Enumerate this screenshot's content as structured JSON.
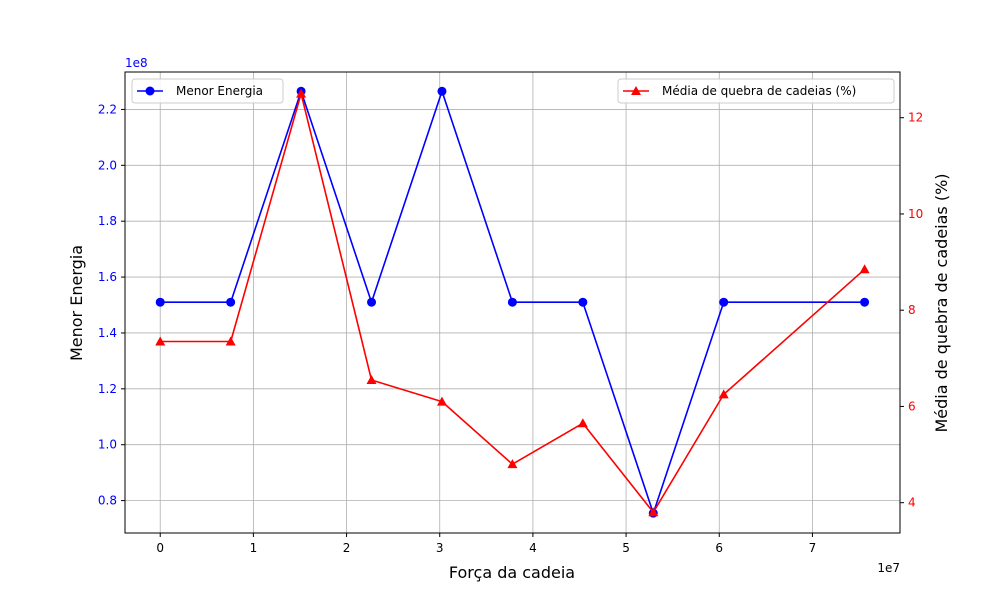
{
  "chart_data": {
    "type": "line",
    "title": "",
    "xlabel": "Força da cadeia",
    "x_offset_label": "1e7",
    "x_ticks": [
      "0",
      "1",
      "2",
      "3",
      "4",
      "5",
      "6",
      "7"
    ],
    "xlim": [
      -0.378,
      7.94
    ],
    "x": [
      0,
      0.756,
      1.512,
      2.268,
      3.024,
      3.78,
      4.536,
      5.292,
      6.048,
      7.56
    ],
    "y_left": {
      "label": "Menor Energia",
      "offset_label": "1e8",
      "color": "#0000ff",
      "ylim": [
        0.684,
        2.334
      ],
      "ticks": [
        "0.8",
        "1.0",
        "1.2",
        "1.4",
        "1.6",
        "1.8",
        "2.0",
        "2.2"
      ]
    },
    "y_right": {
      "label": "Média de quebra de cadeias (%)",
      "color": "#ff0000",
      "ylim": [
        3.37,
        12.95
      ],
      "ticks": [
        "4",
        "6",
        "8",
        "10",
        "12"
      ]
    },
    "series": [
      {
        "name": "Menor Energia",
        "axis": "left",
        "color": "#0000ff",
        "marker": "circle",
        "values": [
          1.51,
          1.51,
          2.265,
          1.51,
          2.265,
          1.51,
          1.51,
          0.755,
          1.51,
          1.51
        ]
      },
      {
        "name": "Média de quebra de cadeias (%)",
        "axis": "right",
        "color": "#ff0000",
        "marker": "triangle",
        "values": [
          7.35,
          7.35,
          12.5,
          6.55,
          6.1,
          4.8,
          5.65,
          3.8,
          6.25,
          8.85
        ]
      }
    ],
    "grid": true,
    "legend": {
      "left_series": "upper left",
      "right_series": "upper right"
    }
  }
}
